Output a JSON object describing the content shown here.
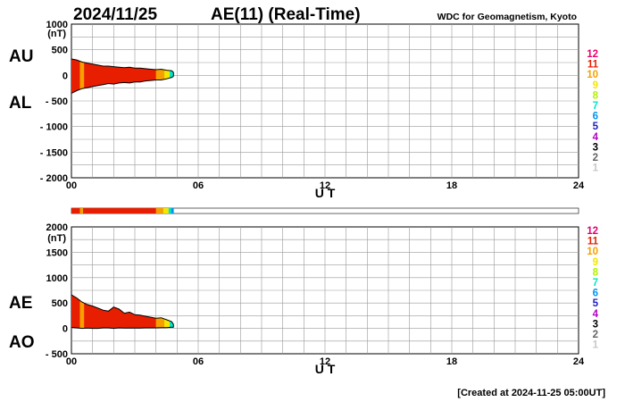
{
  "header": {
    "date": "2024/11/25",
    "title": "AE(11) (Real-Time)",
    "source": "WDC for Geomagnetism, Kyoto"
  },
  "footer": {
    "created": "[Created at 2024-11-25 05:00UT]"
  },
  "level_legend": {
    "labels": [
      "12",
      "11",
      "10",
      "9",
      "8",
      "7",
      "6",
      "5",
      "4",
      "3",
      "2",
      "1"
    ],
    "colors": [
      "#e8006e",
      "#e81e00",
      "#f5a000",
      "#f5e600",
      "#b4f000",
      "#00e6c8",
      "#0096f0",
      "#1e1ebe",
      "#b400c8",
      "#000000",
      "#646464",
      "#c8c8c8"
    ]
  },
  "chart_data": [
    {
      "type": "area",
      "panel": "AU/AL",
      "ylabel": "(nT)",
      "xlabel": "U T",
      "series_labels": [
        "AU",
        "AL"
      ],
      "ylim": [
        -2000,
        1000
      ],
      "yticks": [
        1000,
        500,
        0,
        -500,
        -1000,
        -1500,
        -2000
      ],
      "ytick_labels": [
        "1000",
        "500",
        "0",
        "- 500",
        "- 1000",
        "- 1500",
        "- 2000"
      ],
      "xlim": [
        0,
        24
      ],
      "xticks": [
        0,
        6,
        12,
        18,
        24
      ],
      "xtick_labels": [
        "00",
        "06",
        "12",
        "18",
        "24"
      ],
      "grid": true,
      "x": [
        0,
        0.25,
        0.5,
        0.75,
        1,
        1.25,
        1.5,
        1.75,
        2,
        2.25,
        2.5,
        2.75,
        3,
        3.25,
        3.5,
        3.75,
        4,
        4.25,
        4.5,
        4.75,
        4.83
      ],
      "au": [
        320,
        300,
        260,
        240,
        220,
        200,
        180,
        180,
        170,
        160,
        150,
        160,
        140,
        140,
        130,
        120,
        110,
        120,
        100,
        90,
        60
      ],
      "al": [
        -350,
        -300,
        -260,
        -240,
        -220,
        -200,
        -180,
        -160,
        -170,
        -150,
        -140,
        -150,
        -130,
        -130,
        -110,
        -100,
        -90,
        -90,
        -70,
        -40,
        -20
      ]
    },
    {
      "type": "area",
      "panel": "AE/AO",
      "ylabel": "(nT)",
      "xlabel": "U T",
      "series_labels": [
        "AE",
        "AO"
      ],
      "ylim": [
        -500,
        2000
      ],
      "yticks": [
        2000,
        1500,
        1000,
        500,
        0,
        -500
      ],
      "ytick_labels": [
        "2000",
        "1500",
        "1000",
        "500",
        "0",
        "- 500"
      ],
      "xlim": [
        0,
        24
      ],
      "xticks": [
        0,
        6,
        12,
        18,
        24
      ],
      "xtick_labels": [
        "00",
        "06",
        "12",
        "18",
        "24"
      ],
      "grid": true,
      "x": [
        0,
        0.25,
        0.5,
        0.75,
        1,
        1.25,
        1.5,
        1.75,
        2,
        2.25,
        2.5,
        2.75,
        3,
        3.25,
        3.5,
        3.75,
        4,
        4.25,
        4.5,
        4.75,
        4.83
      ],
      "ae": [
        660,
        600,
        520,
        470,
        440,
        400,
        360,
        340,
        420,
        380,
        300,
        320,
        270,
        260,
        240,
        220,
        200,
        210,
        170,
        130,
        80
      ],
      "ao": [
        20,
        10,
        0,
        5,
        0,
        0,
        10,
        10,
        0,
        10,
        5,
        5,
        5,
        5,
        10,
        10,
        10,
        15,
        15,
        25,
        20
      ]
    }
  ],
  "activity_bar": {
    "xlim": [
      0,
      24
    ],
    "segments": [
      {
        "start": 0.0,
        "end": 0.4,
        "color": "#e81e00"
      },
      {
        "start": 0.4,
        "end": 0.55,
        "color": "#f5a000"
      },
      {
        "start": 0.55,
        "end": 4.0,
        "color": "#e81e00"
      },
      {
        "start": 4.0,
        "end": 4.35,
        "color": "#f5a000"
      },
      {
        "start": 4.35,
        "end": 4.6,
        "color": "#f5e600"
      },
      {
        "start": 4.6,
        "end": 4.72,
        "color": "#00e6c8"
      },
      {
        "start": 4.72,
        "end": 4.83,
        "color": "#0096f0"
      }
    ]
  },
  "fill_segments": [
    {
      "start": 0.0,
      "end": 0.4,
      "color": "#e81e00"
    },
    {
      "start": 0.4,
      "end": 0.6,
      "color": "#f5a000"
    },
    {
      "start": 0.6,
      "end": 4.0,
      "color": "#e81e00"
    },
    {
      "start": 4.0,
      "end": 4.4,
      "color": "#f5a000"
    },
    {
      "start": 4.4,
      "end": 4.65,
      "color": "#f5e600"
    },
    {
      "start": 4.65,
      "end": 4.83,
      "color": "#00e6c8"
    }
  ]
}
